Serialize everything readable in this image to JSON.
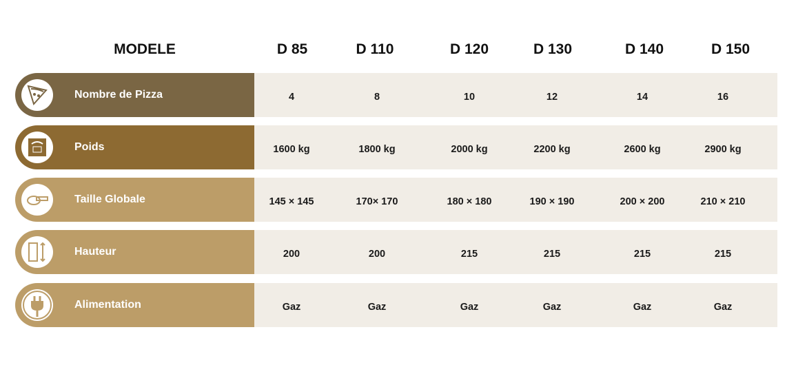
{
  "header": {
    "model_label": "MODELE",
    "models": [
      "D 85",
      "D 110",
      "D 120",
      "D 130",
      "D 140",
      "D 150"
    ]
  },
  "colors": {
    "row1": "#7a6644",
    "row2": "#8d6a32",
    "row_light": "#bc9d68",
    "cell_bg": "#f1ede6"
  },
  "rows": [
    {
      "label": "Nombre de Pizza",
      "icon": "pizza-slice-icon",
      "values": [
        "4",
        "8",
        "10",
        "12",
        "14",
        "16"
      ]
    },
    {
      "label": "Poids",
      "icon": "weight-scale-icon",
      "values": [
        "1600 kg",
        "1800 kg",
        "2000 kg",
        "2200 kg",
        "2600 kg",
        "2900 kg"
      ]
    },
    {
      "label": "Taille Globale",
      "icon": "tape-measure-icon",
      "values": [
        "145 × 145",
        "170× 170",
        "180 × 180",
        "190 × 190",
        "200 × 200",
        "210 × 210"
      ]
    },
    {
      "label": "Hauteur",
      "icon": "ruler-height-icon",
      "values": [
        "200",
        "200",
        "215",
        "215",
        "215",
        "215"
      ]
    },
    {
      "label": "Alimentation",
      "icon": "power-plug-icon",
      "values": [
        "Gaz",
        "Gaz",
        "Gaz",
        "Gaz",
        "Gaz",
        "Gaz"
      ]
    }
  ]
}
